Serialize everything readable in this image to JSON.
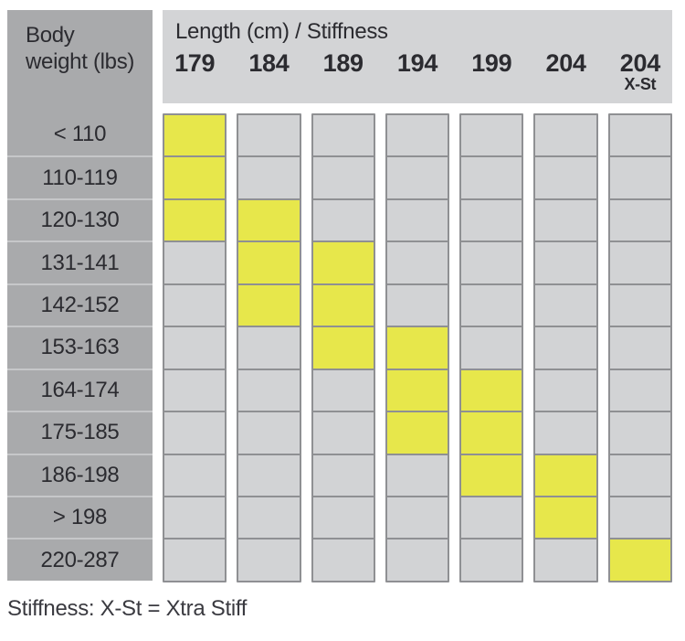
{
  "chart_data": {
    "type": "heatmap",
    "title": "Length (cm) / Stiffness",
    "row_axis_label": "Body weight (lbs)",
    "columns": [
      "179",
      "184",
      "189",
      "194",
      "199",
      "204",
      "204 X-St"
    ],
    "rows": [
      "< 110",
      "110-119",
      "120-130",
      "131-141",
      "142-152",
      "153-163",
      "164-174",
      "175-185",
      "186-198",
      "> 198",
      "220-287"
    ],
    "matrix": [
      [
        1,
        0,
        0,
        0,
        0,
        0,
        0
      ],
      [
        1,
        0,
        0,
        0,
        0,
        0,
        0
      ],
      [
        1,
        1,
        0,
        0,
        0,
        0,
        0
      ],
      [
        0,
        1,
        1,
        0,
        0,
        0,
        0
      ],
      [
        0,
        1,
        1,
        0,
        0,
        0,
        0
      ],
      [
        0,
        0,
        1,
        1,
        0,
        0,
        0
      ],
      [
        0,
        0,
        0,
        1,
        1,
        0,
        0
      ],
      [
        0,
        0,
        0,
        1,
        1,
        0,
        0
      ],
      [
        0,
        0,
        0,
        0,
        1,
        1,
        0
      ],
      [
        0,
        0,
        0,
        0,
        0,
        1,
        0
      ],
      [
        0,
        0,
        0,
        0,
        0,
        0,
        1
      ]
    ],
    "note": "Stiffness: X-St = Xtra Stiff",
    "legend_position": "none",
    "grid": "on"
  },
  "table": {
    "corner_header": {
      "line1": "Body",
      "line2": "weight (lbs)"
    },
    "column_group_title": "Length (cm) / Stiffness",
    "columns": [
      {
        "label": "179",
        "sub": ""
      },
      {
        "label": "184",
        "sub": ""
      },
      {
        "label": "189",
        "sub": ""
      },
      {
        "label": "194",
        "sub": ""
      },
      {
        "label": "199",
        "sub": ""
      },
      {
        "label": "204",
        "sub": ""
      },
      {
        "label": "204",
        "sub": "X-St"
      }
    ],
    "rows": [
      {
        "label": "< 110",
        "cells": [
          1,
          0,
          0,
          0,
          0,
          0,
          0
        ]
      },
      {
        "label": "110-119",
        "cells": [
          1,
          0,
          0,
          0,
          0,
          0,
          0
        ]
      },
      {
        "label": "120-130",
        "cells": [
          1,
          1,
          0,
          0,
          0,
          0,
          0
        ]
      },
      {
        "label": "131-141",
        "cells": [
          0,
          1,
          1,
          0,
          0,
          0,
          0
        ]
      },
      {
        "label": "142-152",
        "cells": [
          0,
          1,
          1,
          0,
          0,
          0,
          0
        ]
      },
      {
        "label": "153-163",
        "cells": [
          0,
          0,
          1,
          1,
          0,
          0,
          0
        ]
      },
      {
        "label": "164-174",
        "cells": [
          0,
          0,
          0,
          1,
          1,
          0,
          0
        ]
      },
      {
        "label": "175-185",
        "cells": [
          0,
          0,
          0,
          1,
          1,
          0,
          0
        ]
      },
      {
        "label": "186-198",
        "cells": [
          0,
          0,
          0,
          0,
          1,
          1,
          0
        ]
      },
      {
        "label": "> 198",
        "cells": [
          0,
          0,
          0,
          0,
          0,
          1,
          0
        ]
      },
      {
        "label": "220-287",
        "cells": [
          0,
          0,
          0,
          0,
          0,
          0,
          1
        ]
      }
    ]
  },
  "footer": {
    "note": "Stiffness: X-St = Xtra Stiff"
  },
  "colors": {
    "highlight_yellow": "#e7e74b",
    "cell_gray": "#d2d3d5",
    "left_column_gray": "#a9aaac",
    "header_gray": "#d3d4d6",
    "cell_border": "#8f9093",
    "row_separator": "#c6c7c9",
    "text": "#2b2b30"
  }
}
